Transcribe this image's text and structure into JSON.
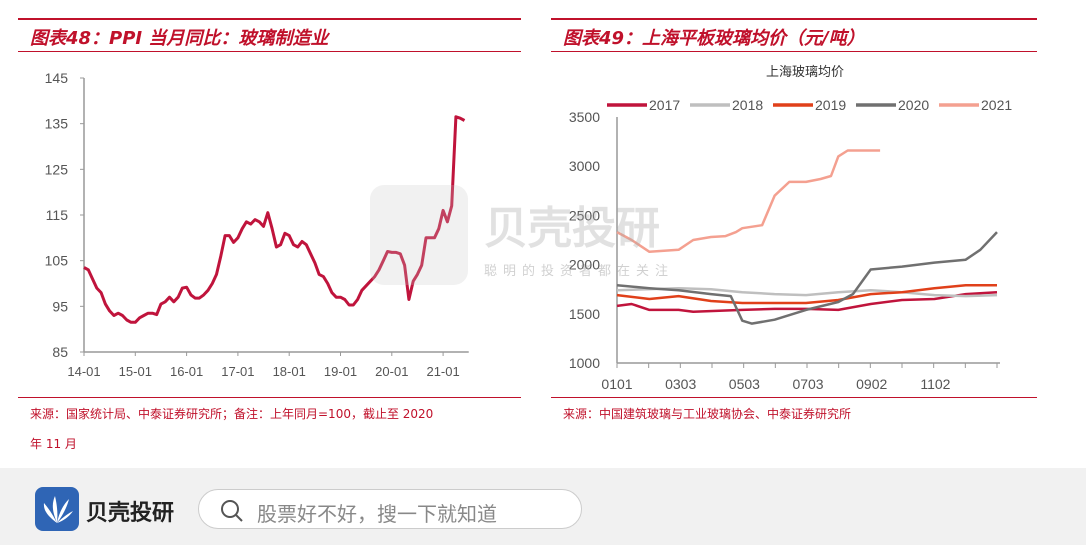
{
  "chart_data": [
    {
      "type": "line",
      "title": "图表48：PPI 当月同比：玻璃制造业",
      "source": "来源：国家统计局、中泰证券研究所；备注：上年同月=100，截止至 2020",
      "source_line2": "年 11 月",
      "x_start": "14-01",
      "x_ticks": [
        "14-01",
        "15-01",
        "16-01",
        "17-01",
        "18-01",
        "19-01",
        "20-01",
        "21-01"
      ],
      "y_ticks": [
        85,
        95,
        105,
        115,
        125,
        135,
        145
      ],
      "ylim": [
        85,
        145
      ],
      "color": "#c0143c",
      "values": [
        103.5,
        103,
        101,
        99,
        98,
        95.5,
        94,
        93,
        93.5,
        93,
        92,
        91.5,
        91.5,
        92.5,
        93,
        93.5,
        93.5,
        93.2,
        95.5,
        96,
        97,
        96,
        97,
        99,
        99.2,
        97.5,
        96.8,
        96.8,
        97.5,
        98.5,
        100,
        102,
        106,
        110.5,
        110.5,
        109,
        110,
        112,
        113.5,
        113,
        114,
        113.5,
        112.5,
        115.5,
        112,
        108,
        108.5,
        111,
        110.5,
        108.5,
        108,
        109.2,
        108.5,
        106.5,
        104.5,
        102,
        101.5,
        100,
        98,
        97,
        97,
        96.5,
        95.3,
        95.3,
        96.5,
        98.5,
        99.5,
        100.5,
        101.5,
        103,
        105,
        107,
        106.8,
        106.8,
        106.5,
        104,
        96.5,
        100.5,
        102,
        104,
        110,
        110,
        110,
        112,
        116,
        113.5,
        117,
        136.5,
        136.2,
        135.7
      ]
    },
    {
      "type": "line",
      "title": "图表49：上海平板玻璃均价（元/吨）",
      "subtitle": "上海玻璃均价",
      "source": "来源：中国建筑玻璃与工业玻璃协会、中泰证券研究所",
      "x_ticks": [
        "0101",
        "0303",
        "0503",
        "0703",
        "0902",
        "1102"
      ],
      "ylim": [
        1000,
        3500
      ],
      "y_ticks": [
        1000,
        1500,
        2000,
        2500,
        3000,
        3500
      ],
      "legend_position": "top",
      "series": [
        {
          "name": "2017",
          "color": "#c0143c",
          "points": [
            [
              "0101",
              1580
            ],
            [
              "0115",
              1600
            ],
            [
              "0201",
              1540
            ],
            [
              "0301",
              1540
            ],
            [
              "0315",
              1520
            ],
            [
              "0501",
              1540
            ],
            [
              "0601",
              1550
            ],
            [
              "0701",
              1550
            ],
            [
              "0801",
              1540
            ],
            [
              "0901",
              1600
            ],
            [
              "1001",
              1640
            ],
            [
              "1101",
              1650
            ],
            [
              "1201",
              1700
            ],
            [
              "1231",
              1720
            ]
          ]
        },
        {
          "name": "2018",
          "color": "#bfbfbf",
          "points": [
            [
              "0101",
              1740
            ],
            [
              "0301",
              1760
            ],
            [
              "0401",
              1750
            ],
            [
              "0501",
              1720
            ],
            [
              "0601",
              1700
            ],
            [
              "0701",
              1690
            ],
            [
              "0801",
              1720
            ],
            [
              "0901",
              1740
            ],
            [
              "1001",
              1720
            ],
            [
              "1101",
              1690
            ],
            [
              "1201",
              1680
            ],
            [
              "1231",
              1690
            ]
          ]
        },
        {
          "name": "2019",
          "color": "#e0401a",
          "points": [
            [
              "0101",
              1690
            ],
            [
              "0201",
              1650
            ],
            [
              "0301",
              1680
            ],
            [
              "0401",
              1630
            ],
            [
              "0501",
              1610
            ],
            [
              "0601",
              1610
            ],
            [
              "0701",
              1610
            ],
            [
              "0801",
              1640
            ],
            [
              "0901",
              1700
            ],
            [
              "1001",
              1720
            ],
            [
              "1101",
              1760
            ],
            [
              "1201",
              1790
            ],
            [
              "1231",
              1790
            ]
          ]
        },
        {
          "name": "2020",
          "color": "#707070",
          "points": [
            [
              "0101",
              1790
            ],
            [
              "0201",
              1760
            ],
            [
              "0301",
              1740
            ],
            [
              "0401",
              1700
            ],
            [
              "0420",
              1680
            ],
            [
              "0501",
              1430
            ],
            [
              "0510",
              1400
            ],
            [
              "0601",
              1440
            ],
            [
              "0701",
              1540
            ],
            [
              "0801",
              1620
            ],
            [
              "0815",
              1700
            ],
            [
              "0901",
              1950
            ],
            [
              "1001",
              1980
            ],
            [
              "1101",
              2020
            ],
            [
              "1201",
              2050
            ],
            [
              "1215",
              2150
            ],
            [
              "1231",
              2330
            ]
          ]
        },
        {
          "name": "2021",
          "color": "#f4a090",
          "points": [
            [
              "0101",
              2330
            ],
            [
              "0115",
              2250
            ],
            [
              "0201",
              2130
            ],
            [
              "0301",
              2150
            ],
            [
              "0315",
              2250
            ],
            [
              "0401",
              2280
            ],
            [
              "0415",
              2290
            ],
            [
              "0425",
              2330
            ],
            [
              "0501",
              2370
            ],
            [
              "0520",
              2400
            ],
            [
              "0601",
              2700
            ],
            [
              "0615",
              2840
            ],
            [
              "0701",
              2840
            ],
            [
              "0715",
              2870
            ],
            [
              "0725",
              2900
            ],
            [
              "0801",
              3100
            ],
            [
              "0810",
              3160
            ],
            [
              "0830",
              3160
            ],
            [
              "0910",
              3160
            ]
          ]
        }
      ]
    }
  ],
  "watermark": {
    "brand": "贝壳投研",
    "slogan": "聪明的投资者都在关注"
  },
  "bottom_bar": {
    "brand": "贝壳投研",
    "search_placeholder": "股票好不好，搜一下就知道"
  }
}
